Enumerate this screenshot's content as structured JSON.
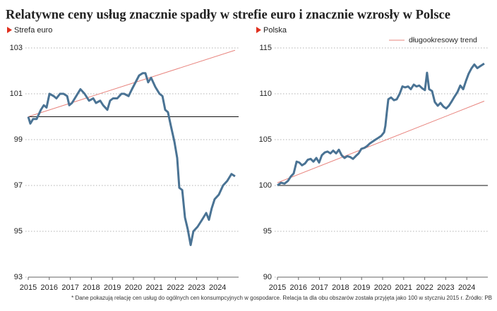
{
  "title": "Relatywne ceny usług znacznie spadły w strefie euro i znacznie wzrosły w Polsce",
  "footnote": "* Dane pokazują relację cen usług do ogólnych cen konsumpcyjnych w gospodarce. Relacja ta dla obu obszarów została przyjęta jako 100 w styczniu 2015 r. Źródło: PB",
  "chart_data": [
    {
      "type": "line",
      "subtitle": "Strefa euro",
      "xlim": [
        2015,
        2025
      ],
      "xticks": [
        2015,
        2016,
        2017,
        2018,
        2019,
        2020,
        2021,
        2022,
        2023,
        2024
      ],
      "ylim": [
        93,
        103
      ],
      "yticks": [
        93,
        95,
        97,
        99,
        101,
        103
      ],
      "grid": true,
      "reference": 100,
      "reference_color": "#111111",
      "series": [
        {
          "color": "#4a7394",
          "x": [
            2015.0,
            2015.1,
            2015.23,
            2015.4,
            2015.6,
            2015.74,
            2015.87,
            2016.01,
            2016.21,
            2016.34,
            2016.51,
            2016.68,
            2016.85,
            2016.95,
            2017.08,
            2017.28,
            2017.48,
            2017.68,
            2017.89,
            2018.09,
            2018.22,
            2018.42,
            2018.56,
            2018.76,
            2018.89,
            2019.03,
            2019.23,
            2019.43,
            2019.56,
            2019.77,
            2019.93,
            2020.1,
            2020.27,
            2020.44,
            2020.57,
            2020.7,
            2020.84,
            2021.04,
            2021.24,
            2021.38,
            2021.51,
            2021.64,
            2021.78,
            2021.95,
            2022.08,
            2022.18,
            2022.32,
            2022.45,
            2022.58,
            2022.72,
            2022.85,
            2023.05,
            2023.26,
            2023.46,
            2023.59,
            2023.72,
            2023.86,
            2024.06,
            2024.26,
            2024.46,
            2024.66,
            2024.83
          ],
          "values": [
            100.0,
            99.7,
            99.9,
            99.9,
            100.3,
            100.5,
            100.4,
            101.0,
            100.9,
            100.8,
            101.0,
            101.0,
            100.9,
            100.5,
            100.6,
            100.9,
            101.2,
            101.0,
            100.7,
            100.8,
            100.6,
            100.7,
            100.5,
            100.3,
            100.7,
            100.8,
            100.8,
            101.0,
            101.0,
            100.9,
            101.2,
            101.5,
            101.8,
            101.9,
            101.9,
            101.5,
            101.7,
            101.3,
            101.0,
            100.9,
            100.3,
            100.2,
            99.6,
            98.9,
            98.2,
            96.9,
            96.8,
            95.6,
            95.1,
            94.4,
            95.0,
            95.2,
            95.5,
            95.8,
            95.5,
            96.0,
            96.4,
            96.6,
            97.0,
            97.2,
            97.5,
            97.4
          ]
        },
        {
          "color": "#e8847e",
          "x": [
            2015.0,
            2024.83
          ],
          "values": [
            100.0,
            102.9
          ]
        }
      ]
    },
    {
      "type": "line",
      "subtitle": "Polska",
      "xlim": [
        2015,
        2025
      ],
      "xticks": [
        2015,
        2016,
        2017,
        2018,
        2019,
        2020,
        2021,
        2022,
        2023,
        2024
      ],
      "ylim": [
        90,
        115
      ],
      "yticks": [
        90,
        95,
        100,
        105,
        110,
        115
      ],
      "grid": true,
      "reference": 100,
      "reference_color": "#111111",
      "legend": "upper right",
      "series": [
        {
          "color": "#4a7394",
          "x": [
            2015.0,
            2015.17,
            2015.34,
            2015.5,
            2015.64,
            2015.77,
            2015.91,
            2016.04,
            2016.17,
            2016.31,
            2016.44,
            2016.58,
            2016.71,
            2016.85,
            2016.98,
            2017.11,
            2017.25,
            2017.38,
            2017.52,
            2017.65,
            2017.79,
            2017.92,
            2018.05,
            2018.19,
            2018.32,
            2018.46,
            2018.59,
            2018.72,
            2018.86,
            2018.99,
            2019.13,
            2019.26,
            2019.4,
            2019.53,
            2019.66,
            2019.8,
            2019.93,
            2020.07,
            2020.13,
            2020.2,
            2020.27,
            2020.4,
            2020.54,
            2020.67,
            2020.81,
            2020.94,
            2021.07,
            2021.21,
            2021.34,
            2021.48,
            2021.61,
            2021.74,
            2021.88,
            2022.01,
            2022.11,
            2022.21,
            2022.35,
            2022.48,
            2022.62,
            2022.75,
            2022.89,
            2023.02,
            2023.15,
            2023.29,
            2023.42,
            2023.56,
            2023.69,
            2023.83,
            2023.96,
            2024.09,
            2024.23,
            2024.36,
            2024.5,
            2024.63,
            2024.83
          ],
          "values": [
            100.0,
            100.3,
            100.2,
            100.5,
            101.0,
            101.3,
            102.6,
            102.5,
            102.2,
            102.4,
            102.8,
            102.9,
            102.6,
            103.0,
            102.5,
            103.3,
            103.6,
            103.7,
            103.5,
            103.8,
            103.5,
            103.9,
            103.3,
            103.0,
            103.2,
            103.1,
            102.9,
            103.2,
            103.5,
            104.0,
            104.1,
            104.3,
            104.6,
            104.8,
            105.0,
            105.2,
            105.4,
            105.8,
            106.5,
            108.0,
            109.4,
            109.6,
            109.3,
            109.4,
            110.0,
            110.8,
            110.7,
            110.8,
            110.5,
            111.0,
            110.8,
            110.9,
            110.6,
            110.4,
            112.3,
            110.5,
            110.3,
            109.1,
            108.7,
            109.0,
            108.6,
            108.4,
            108.7,
            109.2,
            109.7,
            110.2,
            110.9,
            110.5,
            111.4,
            112.2,
            112.8,
            113.2,
            112.8,
            113.0,
            113.3
          ]
        },
        {
          "name": "długookresowy trend",
          "color": "#e8847e",
          "x": [
            2015.0,
            2024.83
          ],
          "values": [
            100.3,
            109.2
          ]
        }
      ]
    }
  ]
}
